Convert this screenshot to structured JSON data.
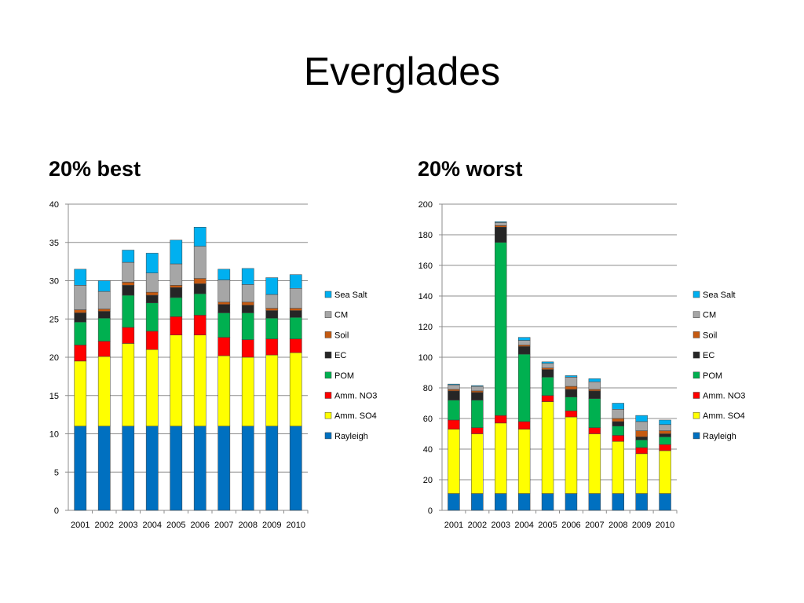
{
  "page": {
    "title": "Everglades"
  },
  "chart_data": [
    {
      "type": "bar",
      "stacked": true,
      "title": "20% best",
      "xlabel": "",
      "ylabel": "",
      "ylim": [
        0,
        40
      ],
      "yticks": [
        0,
        5,
        10,
        15,
        20,
        25,
        30,
        35,
        40
      ],
      "grid": true,
      "legend": "right",
      "categories": [
        "2001",
        "2002",
        "2003",
        "2004",
        "2005",
        "2006",
        "2007",
        "2008",
        "2009",
        "2010"
      ],
      "series": [
        {
          "name": "Rayleigh",
          "color": "#0070c0",
          "values": [
            11,
            11,
            11,
            11,
            11,
            11,
            11,
            11,
            11,
            11
          ]
        },
        {
          "name": "Amm. SO4",
          "color": "#ffff00",
          "values": [
            8.5,
            9.1,
            10.8,
            10.0,
            11.9,
            11.9,
            9.2,
            9.0,
            9.3,
            9.6
          ]
        },
        {
          "name": "Amm. NO3",
          "color": "#ff0000",
          "values": [
            2.1,
            2.0,
            2.1,
            2.4,
            2.4,
            2.6,
            2.4,
            2.3,
            2.1,
            1.8
          ]
        },
        {
          "name": "POM",
          "color": "#00b050",
          "values": [
            3.0,
            3.0,
            4.2,
            3.7,
            2.5,
            2.8,
            3.2,
            3.5,
            2.7,
            2.8
          ]
        },
        {
          "name": "EC",
          "color": "#262626",
          "values": [
            1.2,
            0.9,
            1.3,
            1.0,
            1.3,
            1.3,
            1.1,
            1.0,
            1.0,
            0.9
          ]
        },
        {
          "name": "Soil",
          "color": "#c55a11",
          "values": [
            0.4,
            0.3,
            0.4,
            0.4,
            0.3,
            0.7,
            0.3,
            0.4,
            0.3,
            0.3
          ]
        },
        {
          "name": "CM",
          "color": "#a6a6a6",
          "values": [
            3.2,
            2.3,
            2.6,
            2.5,
            2.8,
            4.2,
            2.9,
            2.3,
            1.8,
            2.6
          ]
        },
        {
          "name": "Sea Salt",
          "color": "#00b0f0",
          "values": [
            2.1,
            1.4,
            1.6,
            2.6,
            3.1,
            2.5,
            1.4,
            2.1,
            2.2,
            1.8
          ]
        }
      ]
    },
    {
      "type": "bar",
      "stacked": true,
      "title": "20% worst",
      "xlabel": "",
      "ylabel": "",
      "ylim": [
        0,
        200
      ],
      "yticks": [
        0,
        20,
        40,
        60,
        80,
        100,
        120,
        140,
        160,
        180,
        200
      ],
      "grid": true,
      "legend": "right",
      "categories": [
        "2001",
        "2002",
        "2003",
        "2004",
        "2005",
        "2006",
        "2007",
        "2008",
        "2009",
        "2010"
      ],
      "series": [
        {
          "name": "Rayleigh",
          "color": "#0070c0",
          "values": [
            11,
            11,
            11,
            11,
            11,
            11,
            11,
            11,
            11,
            11
          ]
        },
        {
          "name": "Amm. SO4",
          "color": "#ffff00",
          "values": [
            42,
            39,
            46,
            42,
            60,
            50,
            39,
            34,
            26,
            28
          ]
        },
        {
          "name": "Amm. NO3",
          "color": "#ff0000",
          "values": [
            6,
            4,
            5,
            5,
            4,
            4,
            4,
            4,
            4,
            4
          ]
        },
        {
          "name": "POM",
          "color": "#00b050",
          "values": [
            13,
            18,
            113,
            44,
            12,
            9,
            19,
            6,
            5,
            5
          ]
        },
        {
          "name": "EC",
          "color": "#262626",
          "values": [
            6,
            5,
            10,
            5,
            5,
            5,
            5,
            3,
            2,
            2
          ]
        },
        {
          "name": "Soil",
          "color": "#c55a11",
          "values": [
            1,
            1,
            1,
            1,
            1,
            2,
            1,
            2,
            4,
            2
          ]
        },
        {
          "name": "CM",
          "color": "#a6a6a6",
          "values": [
            3,
            3,
            2,
            3,
            3,
            6,
            5,
            6,
            6,
            4
          ]
        },
        {
          "name": "Sea Salt",
          "color": "#00b0f0",
          "values": [
            0.5,
            0.5,
            0.5,
            2,
            1,
            1,
            2,
            4,
            4,
            3
          ]
        }
      ]
    }
  ]
}
